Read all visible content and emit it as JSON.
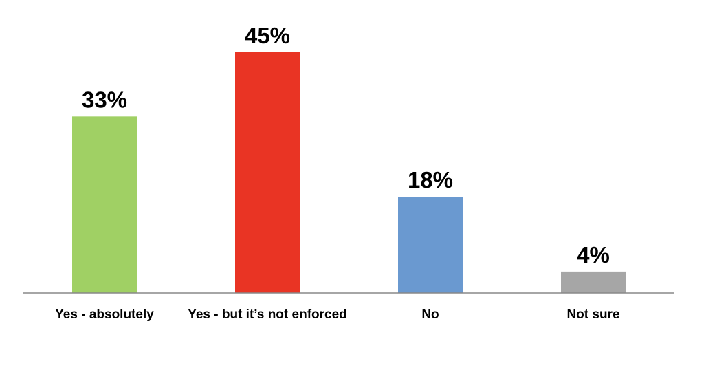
{
  "chart_data": {
    "type": "bar",
    "categories": [
      "Yes - absolutely",
      "Yes - but it’s not enforced",
      "No",
      "Not sure"
    ],
    "values": [
      33,
      45,
      18,
      4
    ],
    "data_labels": [
      "33%",
      "45%",
      "18%",
      "4%"
    ],
    "colors": [
      "#a0d064",
      "#e93424",
      "#6a99d0",
      "#a6a6a6"
    ],
    "ylim": [
      0,
      45
    ],
    "grid": false,
    "legend": "none"
  }
}
